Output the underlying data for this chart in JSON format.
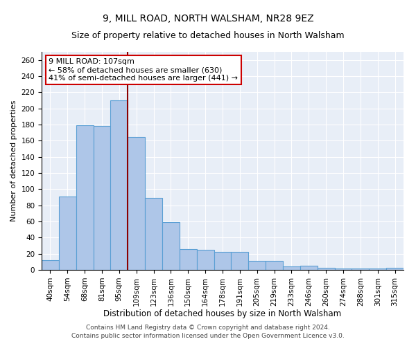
{
  "title1": "9, MILL ROAD, NORTH WALSHAM, NR28 9EZ",
  "title2": "Size of property relative to detached houses in North Walsham",
  "xlabel": "Distribution of detached houses by size in North Walsham",
  "ylabel": "Number of detached properties",
  "categories": [
    "40sqm",
    "54sqm",
    "68sqm",
    "81sqm",
    "95sqm",
    "109sqm",
    "123sqm",
    "136sqm",
    "150sqm",
    "164sqm",
    "178sqm",
    "191sqm",
    "205sqm",
    "219sqm",
    "233sqm",
    "246sqm",
    "260sqm",
    "274sqm",
    "288sqm",
    "301sqm",
    "315sqm"
  ],
  "values": [
    12,
    91,
    179,
    178,
    210,
    165,
    89,
    59,
    26,
    25,
    22,
    22,
    11,
    11,
    4,
    5,
    3,
    2,
    2,
    2,
    3
  ],
  "bar_color": "#aec6e8",
  "bar_edge_color": "#5a9fd4",
  "vline_x_idx": 5,
  "vline_color": "#8b0000",
  "annotation_text": "9 MILL ROAD: 107sqm\n← 58% of detached houses are smaller (630)\n41% of semi-detached houses are larger (441) →",
  "annotation_box_color": "#ffffff",
  "annotation_edge_color": "#cc0000",
  "ylim": [
    0,
    270
  ],
  "yticks": [
    0,
    20,
    40,
    60,
    80,
    100,
    120,
    140,
    160,
    180,
    200,
    220,
    240,
    260
  ],
  "bg_color": "#e8eef7",
  "footer1": "Contains HM Land Registry data © Crown copyright and database right 2024.",
  "footer2": "Contains public sector information licensed under the Open Government Licence v3.0.",
  "title1_fontsize": 10,
  "title2_fontsize": 9,
  "ylabel_fontsize": 8,
  "xlabel_fontsize": 8.5,
  "tick_fontsize": 7.5,
  "footer_fontsize": 6.5,
  "annot_fontsize": 8
}
